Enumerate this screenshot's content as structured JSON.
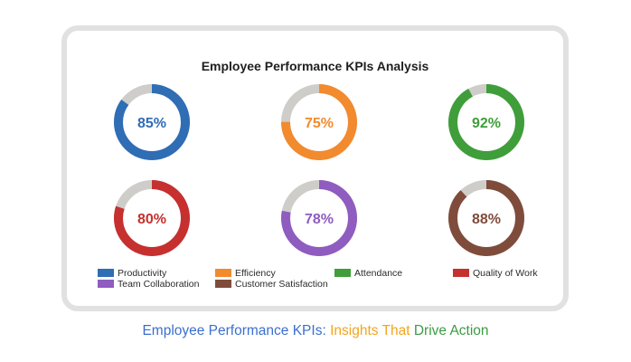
{
  "chart_data": {
    "type": "pie",
    "title": "Employee Performance KPIs Analysis",
    "remainder_color": "#cfcdca",
    "kpis": [
      {
        "name": "Productivity",
        "value": 85,
        "label": "85%",
        "color": "#2f6db5"
      },
      {
        "name": "Efficiency",
        "value": 75,
        "label": "75%",
        "color": "#f28a2e"
      },
      {
        "name": "Attendance",
        "value": 92,
        "label": "92%",
        "color": "#3f9e3a"
      },
      {
        "name": "Quality of Work",
        "value": 80,
        "label": "80%",
        "color": "#c6302f"
      },
      {
        "name": "Team Collaboration",
        "value": 78,
        "label": "78%",
        "color": "#8f5cbf"
      },
      {
        "name": "Customer Satisfaction",
        "value": 88,
        "label": "88%",
        "color": "#7f4c3c"
      }
    ],
    "legend": [
      {
        "label": "Productivity",
        "color": "#2f6db5"
      },
      {
        "label": "Efficiency",
        "color": "#f28a2e"
      },
      {
        "label": "Attendance",
        "color": "#3f9e3a"
      },
      {
        "label": "Quality of Work",
        "color": "#c6302f"
      },
      {
        "label": "Team Collaboration",
        "color": "#8f5cbf"
      },
      {
        "label": "Customer Satisfaction",
        "color": "#7f4c3c"
      }
    ]
  },
  "caption": {
    "part1": "Employee Performance KPIs: ",
    "part1_color": "#3b6fce",
    "part2": "Insights That ",
    "part2_color": "#f2a51f",
    "part3": "Drive Action",
    "part3_color": "#3e9a45"
  }
}
